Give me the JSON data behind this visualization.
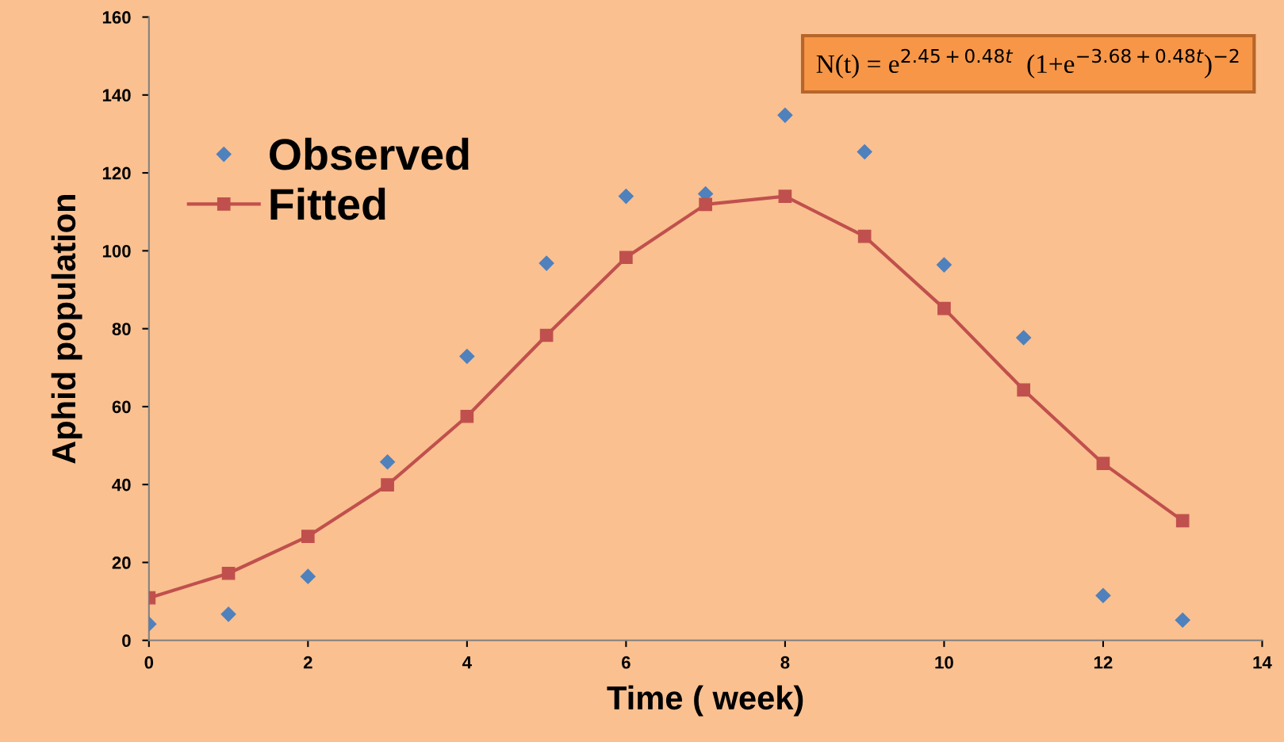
{
  "chart_data": {
    "type": "scatter",
    "xlabel": "Time ( week)",
    "ylabel": "Aphid population",
    "x": [
      0,
      1,
      2,
      3,
      4,
      5,
      6,
      7,
      8,
      9,
      10,
      11,
      12,
      13
    ],
    "series": [
      {
        "name": "Observed",
        "type": "scatter",
        "marker": "diamond",
        "color": "#4f81bd",
        "values": [
          4.2,
          6.7,
          16.4,
          45.8,
          72.9,
          96.8,
          114.0,
          114.6,
          134.8,
          125.4,
          96.4,
          77.7,
          11.5,
          5.2
        ]
      },
      {
        "name": "Fitted",
        "type": "line",
        "marker": "square",
        "line_style": "solid",
        "color": "#c0504d",
        "values": [
          10.9,
          17.2,
          26.7,
          39.9,
          57.5,
          78.3,
          98.3,
          111.9,
          114.0,
          103.7,
          85.2,
          64.3,
          45.4,
          30.7
        ]
      }
    ],
    "xlim": [
      0,
      14
    ],
    "xticks": [
      0,
      2,
      4,
      6,
      8,
      10,
      12,
      14
    ],
    "ylim": [
      0,
      160
    ],
    "yticks": [
      0,
      20,
      40,
      60,
      80,
      100,
      120,
      140,
      160
    ],
    "grid": false,
    "legend": "top left",
    "annotations": [
      "N(t) = e$^{2.45+0.48t}$  (1+e$^{−3.68+0.48t}$)$^{−2}$"
    ]
  }
}
